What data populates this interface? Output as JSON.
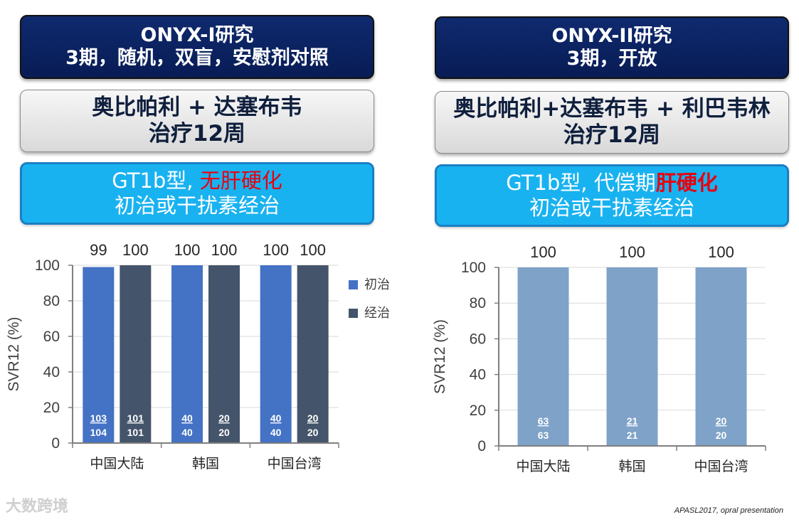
{
  "left": {
    "header_line1": "ONYX-I研究",
    "header_line2": "3期，随机，双盲，安慰剂对照",
    "treatment_line1": "奥比帕利 + 达塞布韦",
    "treatment_line2": "治疗12周",
    "pop_prefix": "GT1b型, ",
    "pop_red": "无肝硬化",
    "pop_line2": "初治或干扰素经治"
  },
  "right": {
    "header_line1": "ONYX-II研究",
    "header_line2": "3期，开放",
    "treatment_line1": "奥比帕利+达塞布韦 + 利巴韦林",
    "treatment_line2": "治疗12周",
    "pop_prefix": "GT1b型, 代偿期",
    "pop_red": "肝硬化",
    "pop_line2": "初治或干扰素经治"
  },
  "footnote": "APASL2017, opral presentation",
  "watermark": "大数跨境",
  "chart_data": [
    {
      "type": "bar",
      "categories": [
        "中国大陆",
        "韩国",
        "中国台湾"
      ],
      "ylabel": "SVR12 (%)",
      "ylim": [
        0,
        100
      ],
      "yticks": [
        "0",
        "20",
        "40",
        "60",
        "80",
        "100"
      ],
      "legend_position": "right",
      "series": [
        {
          "name": "初治",
          "color": "#4472c4",
          "values": [
            99,
            100,
            100
          ],
          "value_labels": [
            "99",
            "100",
            "100"
          ],
          "numerators": [
            "103",
            "40",
            "40"
          ],
          "denominators": [
            "104",
            "40",
            "40"
          ]
        },
        {
          "name": "经治",
          "color": "#44546a",
          "values": [
            100,
            100,
            100
          ],
          "value_labels": [
            "100",
            "100",
            "100"
          ],
          "numerators": [
            "101",
            "20",
            "20"
          ],
          "denominators": [
            "101",
            "20",
            "20"
          ]
        }
      ]
    },
    {
      "type": "bar",
      "categories": [
        "中国大陆",
        "韩国",
        "中国台湾"
      ],
      "ylabel": "SVR12 (%)",
      "ylim": [
        0,
        100
      ],
      "yticks": [
        "0",
        "20",
        "40",
        "60",
        "80",
        "100"
      ],
      "series": [
        {
          "color": "#7fa2c8",
          "values": [
            100,
            100,
            100
          ],
          "value_labels": [
            "100",
            "100",
            "100"
          ],
          "numerators": [
            "63",
            "21",
            "20"
          ],
          "denominators": [
            "63",
            "21",
            "20"
          ]
        }
      ]
    }
  ]
}
